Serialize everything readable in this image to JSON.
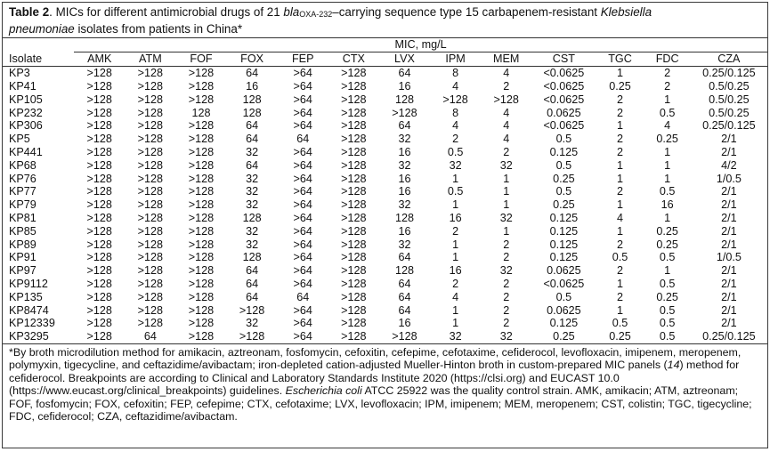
{
  "caption": {
    "label": "Table 2",
    "text_1": ". MICs for different antimicrobial drugs of 21 ",
    "gene_italic": "bla",
    "gene_sub": "OXA-232",
    "text_2": "–carrying sequence type 15 carbapenem-resistant ",
    "species_part1": "Klebsiella",
    "species_part2": "pneumoniae",
    "text_3": " isolates from patients in China*"
  },
  "table": {
    "group_header": "MIC, mg/L",
    "columns": [
      "Isolate",
      "AMK",
      "ATM",
      "FOF",
      "FOX",
      "FEP",
      "CTX",
      "LVX",
      "IPM",
      "MEM",
      "CST",
      "TGC",
      "FDC",
      "CZA"
    ],
    "rows": [
      [
        "KP3",
        ">128",
        ">128",
        ">128",
        "64",
        ">64",
        ">128",
        "64",
        "8",
        "4",
        "<0.0625",
        "1",
        "2",
        "0.25/0.125"
      ],
      [
        "KP41",
        ">128",
        ">128",
        ">128",
        "16",
        ">64",
        ">128",
        "16",
        "4",
        "2",
        "<0.0625",
        "0.25",
        "2",
        "0.5/0.25"
      ],
      [
        "KP105",
        ">128",
        ">128",
        ">128",
        "128",
        ">64",
        ">128",
        "128",
        ">128",
        ">128",
        "<0.0625",
        "2",
        "1",
        "0.5/0.25"
      ],
      [
        "KP232",
        ">128",
        ">128",
        "128",
        "128",
        ">64",
        ">128",
        ">128",
        "8",
        "4",
        "0.0625",
        "2",
        "0.5",
        "0.5/0.25"
      ],
      [
        "KP306",
        ">128",
        ">128",
        ">128",
        "64",
        ">64",
        ">128",
        "64",
        "4",
        "4",
        "<0.0625",
        "1",
        "4",
        "0.25/0.125"
      ],
      [
        "KP5",
        ">128",
        ">128",
        ">128",
        "64",
        "64",
        ">128",
        "32",
        "2",
        "4",
        "0.5",
        "2",
        "0.25",
        "2/1"
      ],
      [
        "KP441",
        ">128",
        ">128",
        ">128",
        "32",
        ">64",
        ">128",
        "16",
        "0.5",
        "2",
        "0.125",
        "2",
        "1",
        "2/1"
      ],
      [
        "KP68",
        ">128",
        ">128",
        ">128",
        "64",
        ">64",
        ">128",
        "32",
        "32",
        "32",
        "0.5",
        "1",
        "1",
        "4/2"
      ],
      [
        "KP76",
        ">128",
        ">128",
        ">128",
        "32",
        ">64",
        ">128",
        "16",
        "1",
        "1",
        "0.25",
        "1",
        "1",
        "1/0.5"
      ],
      [
        "KP77",
        ">128",
        ">128",
        ">128",
        "32",
        ">64",
        ">128",
        "16",
        "0.5",
        "1",
        "0.5",
        "2",
        "0.5",
        "2/1"
      ],
      [
        "KP79",
        ">128",
        ">128",
        ">128",
        "32",
        ">64",
        ">128",
        "32",
        "1",
        "1",
        "0.25",
        "1",
        "16",
        "2/1"
      ],
      [
        "KP81",
        ">128",
        ">128",
        ">128",
        "128",
        ">64",
        ">128",
        "128",
        "16",
        "32",
        "0.125",
        "4",
        "1",
        "2/1"
      ],
      [
        "KP85",
        ">128",
        ">128",
        ">128",
        "32",
        ">64",
        ">128",
        "16",
        "2",
        "1",
        "0.125",
        "1",
        "0.25",
        "2/1"
      ],
      [
        "KP89",
        ">128",
        ">128",
        ">128",
        "32",
        ">64",
        ">128",
        "32",
        "1",
        "2",
        "0.125",
        "2",
        "0.25",
        "2/1"
      ],
      [
        "KP91",
        ">128",
        ">128",
        ">128",
        "128",
        ">64",
        ">128",
        "64",
        "1",
        "2",
        "0.125",
        "0.5",
        "0.5",
        "1/0.5"
      ],
      [
        "KP97",
        ">128",
        ">128",
        ">128",
        "64",
        ">64",
        ">128",
        "128",
        "16",
        "32",
        "0.0625",
        "2",
        "1",
        "2/1"
      ],
      [
        "KP9112",
        ">128",
        ">128",
        ">128",
        "64",
        ">64",
        ">128",
        "64",
        "2",
        "2",
        "<0.0625",
        "1",
        "0.5",
        "2/1"
      ],
      [
        "KP135",
        ">128",
        ">128",
        ">128",
        "64",
        "64",
        ">128",
        "64",
        "4",
        "2",
        "0.5",
        "2",
        "0.25",
        "2/1"
      ],
      [
        "KP8474",
        ">128",
        ">128",
        ">128",
        ">128",
        ">64",
        ">128",
        "64",
        "1",
        "2",
        "0.0625",
        "1",
        "0.5",
        "2/1"
      ],
      [
        "KP12339",
        ">128",
        ">128",
        ">128",
        "32",
        ">64",
        ">128",
        "16",
        "1",
        "2",
        "0.125",
        "0.5",
        "0.5",
        "2/1"
      ],
      [
        "KP3295",
        ">128",
        "64",
        ">128",
        ">128",
        ">64",
        ">128",
        ">128",
        "32",
        "32",
        "0.25",
        "0.25",
        "0.5",
        "0.25/0.125"
      ]
    ]
  },
  "footnote": {
    "part1": "*By broth microdilution method for amikacin, aztreonam, fosfomycin, cefoxitin, cefepime, cefotaxime, cefiderocol, levofloxacin, imipenem, meropenem, polymyxin, tigecycline, and ceftazidime/avibactam; iron-depleted cation-adjusted Mueller-Hinton broth in custom-prepared MIC panels (",
    "ref_italic": "14",
    "part2": ") method for cefiderocol. Breakpoints are according to Clinical and Laboratory Standards Institute 2020 (https://clsi.org) and EUCAST 10.0 (https://www.eucast.org/clinical_breakpoints) guidelines. ",
    "organism_italic": "Escherichia coli",
    "part3": " ATCC 25922 was the quality control strain. AMK, amikacin; ATM, aztreonam; FOF, fosfomycin; FOX, cefoxitin; FEP, cefepime; CTX, cefotaxime; LVX, levofloxacin; IPM, imipenem; MEM, meropenem; CST, colistin; TGC, tigecycline; FDC, cefiderocol; CZA, ceftazidime/avibactam."
  }
}
